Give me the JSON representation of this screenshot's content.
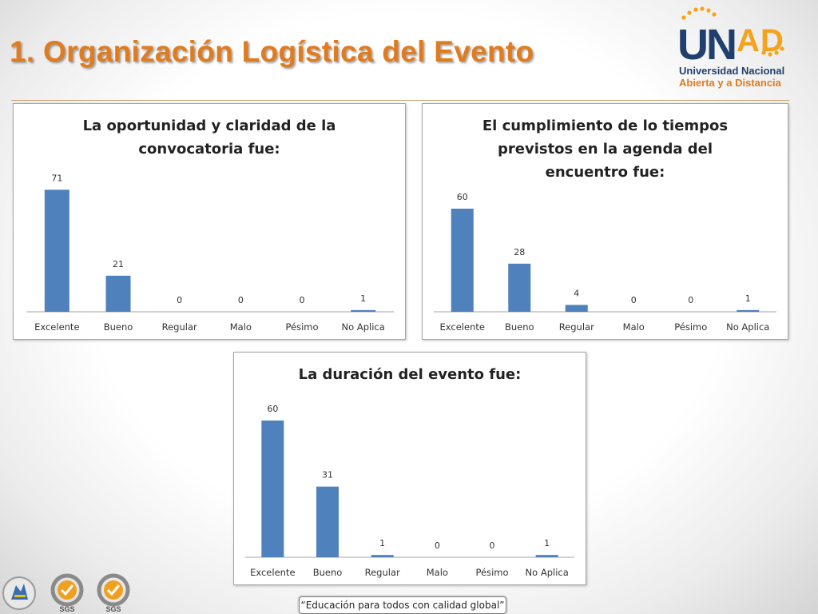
{
  "slide": {
    "title": "1.  Organización Logística del Evento",
    "logo": {
      "name": "UNAD",
      "line1": "Universidad Nacional",
      "line2": "Abierta y a Distancia"
    },
    "footer": {
      "tagline": "“Educación para todos con calidad global”",
      "logo_labels": [
        "SGS",
        "SGS"
      ]
    },
    "colors": {
      "title": "#e07b1e",
      "bar": "#4f81bd",
      "logo_blue": "#1f3f6e",
      "logo_orange": "#f5a31a"
    }
  },
  "chart_data": [
    {
      "type": "bar",
      "title": "La oportunidad y claridad de la convocatoria fue:",
      "categories": [
        "Excelente",
        "Bueno",
        "Regular",
        "Malo",
        "Pésimo",
        "No Aplica"
      ],
      "values": [
        71,
        21,
        0,
        0,
        0,
        1
      ],
      "xlabel": "",
      "ylabel": "",
      "ylim": [
        0,
        71
      ],
      "grid": false,
      "legend": "none",
      "data_labels": true
    },
    {
      "type": "bar",
      "title": "El cumplimiento de lo tiempos previstos en la agenda del encuentro fue:",
      "categories": [
        "Excelente",
        "Bueno",
        "Regular",
        "Malo",
        "Pésimo",
        "No Aplica"
      ],
      "values": [
        60,
        28,
        4,
        0,
        0,
        1
      ],
      "xlabel": "",
      "ylabel": "",
      "ylim": [
        0,
        71
      ],
      "grid": false,
      "legend": "none",
      "data_labels": true
    },
    {
      "type": "bar",
      "title": "La duración del evento fue:",
      "categories": [
        "Excelente",
        "Bueno",
        "Regular",
        "Malo",
        "Pésimo",
        "No Aplica"
      ],
      "values": [
        60,
        31,
        1,
        0,
        0,
        1
      ],
      "xlabel": "",
      "ylabel": "",
      "ylim": [
        0,
        71
      ],
      "grid": false,
      "legend": "none",
      "data_labels": true
    }
  ]
}
